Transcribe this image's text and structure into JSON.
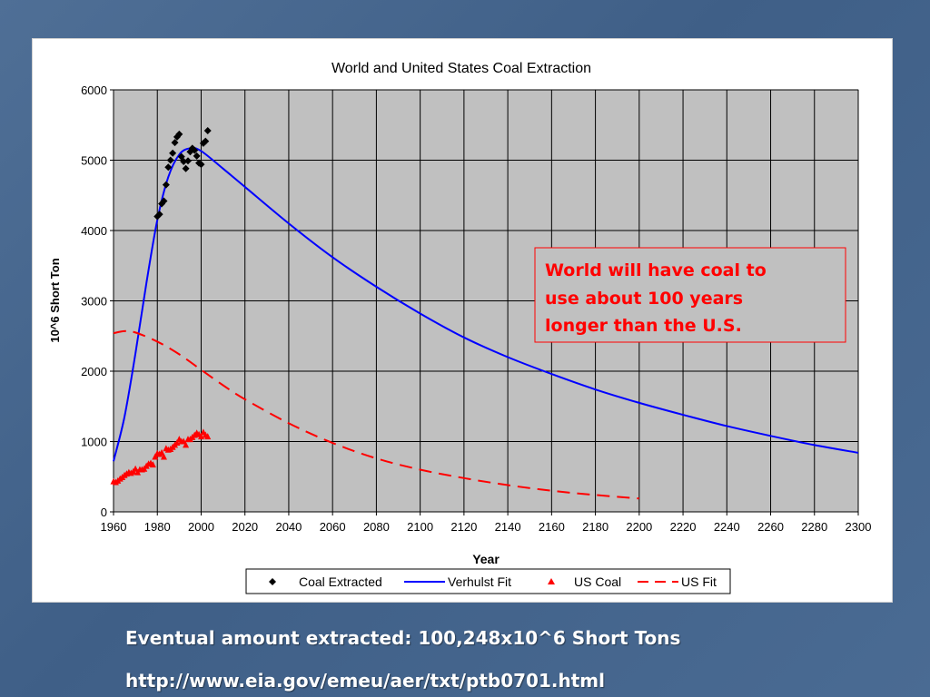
{
  "slide": {
    "caption_amount": "Eventual amount extracted: 100,248x10^6 Short Tons",
    "caption_url": "http://www.eia.gov/emeu/aer/txt/ptb0701.html"
  },
  "chart_data": {
    "type": "line",
    "title": "World and United States Coal Extraction",
    "xlabel": "Year",
    "ylabel": "10^6 Short Ton",
    "xlim": [
      1960,
      2300
    ],
    "ylim": [
      0,
      6000
    ],
    "x_ticks": [
      1960,
      1980,
      2000,
      2020,
      2040,
      2060,
      2080,
      2100,
      2120,
      2140,
      2160,
      2180,
      2200,
      2220,
      2240,
      2260,
      2280,
      2300
    ],
    "y_ticks": [
      0,
      1000,
      2000,
      3000,
      4000,
      5000,
      6000
    ],
    "grid": true,
    "plot_background": "#c0c0c0",
    "legend_position": "bottom",
    "annotation": {
      "text_lines": [
        "World will have coal to",
        "use about 100 years",
        "longer than the U.S."
      ],
      "color": "#ff0000"
    },
    "series": [
      {
        "name": "Coal Extracted",
        "kind": "scatter",
        "marker": "diamond",
        "color": "#000000",
        "points": [
          [
            1980,
            4200
          ],
          [
            1981,
            4230
          ],
          [
            1982,
            4380
          ],
          [
            1983,
            4420
          ],
          [
            1984,
            4650
          ],
          [
            1985,
            4900
          ],
          [
            1986,
            5000
          ],
          [
            1987,
            5100
          ],
          [
            1988,
            5250
          ],
          [
            1989,
            5330
          ],
          [
            1990,
            5370
          ],
          [
            1991,
            5050
          ],
          [
            1992,
            4980
          ],
          [
            1993,
            4880
          ],
          [
            1994,
            4990
          ],
          [
            1995,
            5120
          ],
          [
            1996,
            5170
          ],
          [
            1997,
            5140
          ],
          [
            1998,
            5060
          ],
          [
            1999,
            4960
          ],
          [
            2000,
            4940
          ],
          [
            2001,
            5240
          ],
          [
            2002,
            5270
          ],
          [
            2003,
            5420
          ]
        ]
      },
      {
        "name": "Verhulst Fit",
        "kind": "line",
        "color": "#0000ff",
        "points": [
          [
            1960,
            720
          ],
          [
            1965,
            1350
          ],
          [
            1970,
            2250
          ],
          [
            1975,
            3250
          ],
          [
            1980,
            4150
          ],
          [
            1985,
            4760
          ],
          [
            1990,
            5080
          ],
          [
            1995,
            5170
          ],
          [
            2000,
            5130
          ],
          [
            2010,
            4880
          ],
          [
            2020,
            4620
          ],
          [
            2040,
            4100
          ],
          [
            2060,
            3620
          ],
          [
            2080,
            3200
          ],
          [
            2100,
            2820
          ],
          [
            2120,
            2480
          ],
          [
            2140,
            2200
          ],
          [
            2160,
            1960
          ],
          [
            2180,
            1740
          ],
          [
            2200,
            1550
          ],
          [
            2220,
            1380
          ],
          [
            2240,
            1220
          ],
          [
            2260,
            1080
          ],
          [
            2280,
            950
          ],
          [
            2300,
            840
          ]
        ]
      },
      {
        "name": "US Coal",
        "kind": "scatter",
        "marker": "triangle",
        "color": "#ff0000",
        "points": [
          [
            1960,
            430
          ],
          [
            1961,
            420
          ],
          [
            1962,
            440
          ],
          [
            1963,
            470
          ],
          [
            1964,
            490
          ],
          [
            1965,
            520
          ],
          [
            1966,
            540
          ],
          [
            1967,
            560
          ],
          [
            1968,
            550
          ],
          [
            1969,
            570
          ],
          [
            1970,
            610
          ],
          [
            1971,
            560
          ],
          [
            1972,
            600
          ],
          [
            1973,
            600
          ],
          [
            1974,
            610
          ],
          [
            1975,
            650
          ],
          [
            1976,
            680
          ],
          [
            1977,
            690
          ],
          [
            1978,
            670
          ],
          [
            1979,
            780
          ],
          [
            1980,
            830
          ],
          [
            1981,
            820
          ],
          [
            1982,
            840
          ],
          [
            1983,
            780
          ],
          [
            1984,
            900
          ],
          [
            1985,
            880
          ],
          [
            1986,
            890
          ],
          [
            1987,
            920
          ],
          [
            1988,
            950
          ],
          [
            1989,
            980
          ],
          [
            1990,
            1030
          ],
          [
            1991,
            1000
          ],
          [
            1992,
            1000
          ],
          [
            1993,
            950
          ],
          [
            1994,
            1030
          ],
          [
            1995,
            1030
          ],
          [
            1996,
            1060
          ],
          [
            1997,
            1090
          ],
          [
            1998,
            1120
          ],
          [
            1999,
            1100
          ],
          [
            2000,
            1070
          ],
          [
            2001,
            1130
          ],
          [
            2002,
            1090
          ],
          [
            2003,
            1070
          ]
        ]
      },
      {
        "name": "US Fit",
        "kind": "dashed-line",
        "color": "#ff0000",
        "points": [
          [
            1960,
            2540
          ],
          [
            1965,
            2570
          ],
          [
            1970,
            2550
          ],
          [
            1980,
            2420
          ],
          [
            1990,
            2240
          ],
          [
            2000,
            2020
          ],
          [
            2010,
            1800
          ],
          [
            2020,
            1600
          ],
          [
            2040,
            1260
          ],
          [
            2060,
            980
          ],
          [
            2080,
            760
          ],
          [
            2100,
            600
          ],
          [
            2120,
            480
          ],
          [
            2140,
            380
          ],
          [
            2160,
            300
          ],
          [
            2180,
            240
          ],
          [
            2200,
            190
          ]
        ]
      }
    ]
  }
}
